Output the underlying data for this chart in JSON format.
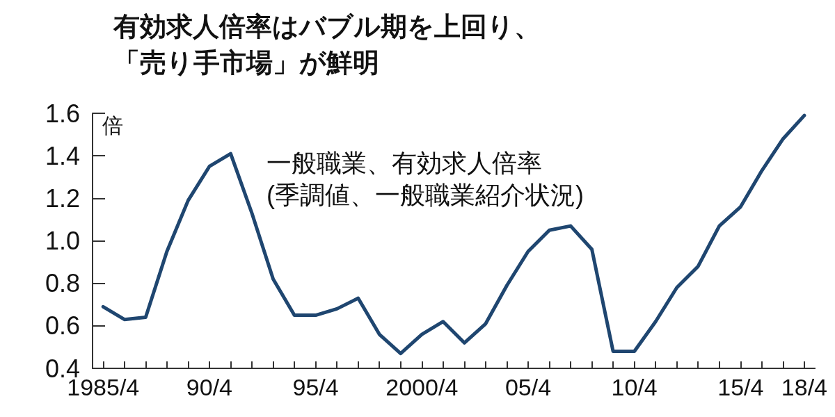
{
  "chart_data": {
    "type": "line",
    "title": "有効求人倍率はバブル期を上回り、",
    "subtitle": "「売り手市場」が鮮明",
    "ylabel": "倍",
    "annotations": [
      "一般職業、有効求人倍率",
      "(季調値、一般職業紹介状況)"
    ],
    "categories": [
      "1985/4",
      null,
      null,
      null,
      null,
      "90/4",
      null,
      null,
      null,
      null,
      "95/4",
      null,
      null,
      null,
      null,
      "2000/4",
      null,
      null,
      null,
      null,
      "05/4",
      null,
      null,
      null,
      null,
      "10/4",
      null,
      null,
      null,
      null,
      "15/4",
      null,
      null,
      "18/4"
    ],
    "series": [
      {
        "color": "#1f4670",
        "values": [
          0.69,
          0.63,
          0.64,
          0.95,
          1.19,
          1.35,
          1.41,
          1.13,
          0.82,
          0.65,
          0.65,
          0.68,
          0.73,
          0.56,
          0.47,
          0.56,
          0.62,
          0.52,
          0.61,
          0.79,
          0.95,
          1.05,
          1.07,
          0.96,
          0.48,
          0.48,
          0.62,
          0.78,
          0.88,
          1.07,
          1.16,
          1.33,
          1.48,
          1.59
        ]
      }
    ],
    "ylim": [
      0.4,
      1.6
    ],
    "yticks": [
      0.4,
      0.6,
      0.8,
      {
        "value": 1,
        "label": "1.0"
      },
      1.2,
      1.4,
      1.6
    ],
    "grid": false,
    "marker": "none",
    "line_style": "solid"
  }
}
